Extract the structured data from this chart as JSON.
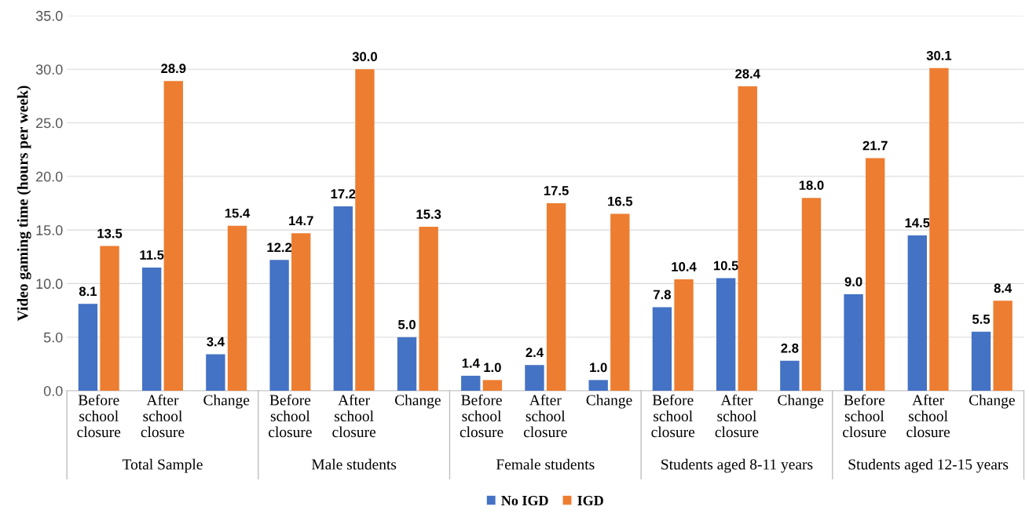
{
  "chart_data": {
    "type": "bar",
    "ylabel": "Video gaming time (hours per week)",
    "categories": [
      "Before school closure",
      "After school closure",
      "Change",
      "Before school closure",
      "After school closure",
      "Change",
      "Before school closure",
      "After school closure",
      "Change",
      "Before school closure",
      "After school closure",
      "Change",
      "Before school closure",
      "After school closure",
      "Change"
    ],
    "series": [
      {
        "name": "No IGD",
        "color": "#4472c4",
        "values": [
          8.1,
          11.5,
          3.4,
          12.2,
          17.2,
          5.0,
          1.4,
          2.4,
          1.0,
          7.8,
          10.5,
          2.8,
          9.0,
          14.5,
          5.5
        ],
        "value_labels": [
          "8.1",
          "11.5",
          "3.4",
          "12.2",
          "17.2",
          "5.0",
          "1.4",
          "2.4",
          "1.0",
          "7.8",
          "10.5",
          "2.8",
          "9.0",
          "14.5",
          "5.5"
        ]
      },
      {
        "name": "IGD",
        "color": "#ed7d31",
        "values": [
          13.5,
          28.9,
          15.4,
          14.7,
          30.0,
          15.3,
          1.0,
          17.5,
          16.5,
          10.4,
          28.4,
          18.0,
          21.7,
          30.1,
          8.4
        ],
        "value_labels": [
          "13.5",
          "28.9",
          "15.4",
          "14.7",
          "30.0",
          "15.3",
          "1.0",
          "17.5",
          "16.5",
          "10.4",
          "28.4",
          "18.0",
          "21.7",
          "30.1",
          "8.4"
        ]
      }
    ],
    "annotations": [
      "Total Sample",
      "Male students",
      "Female students",
      "Students aged 8-11 years",
      "Students aged 12-15 years"
    ],
    "ylim": [
      0,
      35
    ],
    "yticks": [
      {
        "value": 0,
        "label": "0.0"
      },
      {
        "value": 5,
        "label": "5.0"
      },
      {
        "value": 10,
        "label": "10.0"
      },
      {
        "value": 15,
        "label": "15.0"
      },
      {
        "value": 20,
        "label": "20.0"
      },
      {
        "value": 25,
        "label": "25.0"
      },
      {
        "value": 30,
        "label": "30.0"
      },
      {
        "value": 35,
        "label": "35.0"
      }
    ],
    "grid": "y",
    "legend": "bottom"
  }
}
